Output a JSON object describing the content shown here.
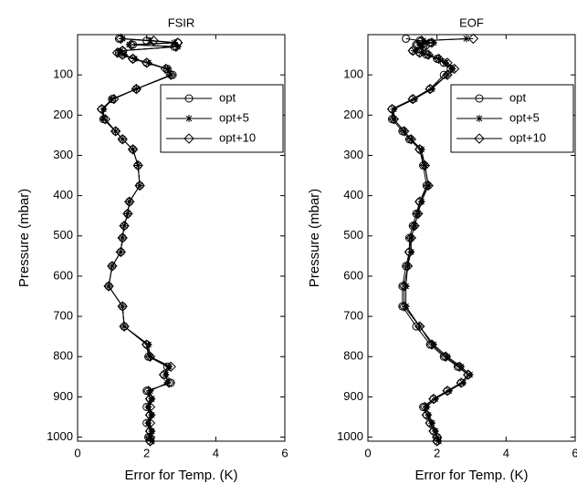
{
  "chart_data": [
    {
      "type": "line",
      "title": "FSIR",
      "xlabel": "Error for Temp. (K)",
      "ylabel": "Pressure (mbar)",
      "y": [
        10,
        15,
        20,
        25,
        30,
        40,
        45,
        50,
        60,
        70,
        85,
        100,
        135,
        160,
        185,
        210,
        240,
        260,
        285,
        325,
        375,
        415,
        445,
        475,
        505,
        540,
        575,
        625,
        675,
        725,
        770,
        800,
        825,
        845,
        865,
        885,
        905,
        925,
        945,
        965,
        985,
        1000,
        1010
      ],
      "series": [
        {
          "name": "opt",
          "color": "#000000",
          "marker": "circle",
          "values": [
            1.2,
            2.0,
            2.9,
            1.6,
            2.8,
            1.3,
            1.2,
            1.3,
            1.6,
            2.0,
            2.6,
            2.75,
            1.7,
            1.0,
            0.7,
            0.75,
            1.1,
            1.3,
            1.6,
            1.75,
            1.8,
            1.5,
            1.45,
            1.35,
            1.3,
            1.25,
            1.0,
            0.9,
            1.3,
            1.35,
            2.0,
            2.05,
            2.6,
            2.5,
            2.7,
            2.0,
            2.1,
            2.0,
            2.1,
            2.0,
            2.1,
            2.05,
            2.1
          ]
        },
        {
          "name": "opt+5",
          "color": "#000000",
          "marker": "star",
          "values": [
            1.3,
            2.1,
            2.8,
            1.5,
            2.9,
            1.25,
            1.2,
            1.35,
            1.65,
            2.05,
            2.6,
            2.7,
            1.7,
            1.0,
            0.75,
            0.75,
            1.1,
            1.3,
            1.6,
            1.75,
            1.8,
            1.5,
            1.45,
            1.35,
            1.3,
            1.25,
            1.0,
            0.9,
            1.3,
            1.35,
            2.05,
            2.1,
            2.65,
            2.55,
            2.6,
            2.1,
            2.15,
            2.05,
            2.15,
            2.05,
            2.15,
            2.1,
            2.15
          ]
        },
        {
          "name": "opt+10",
          "color": "#000000",
          "marker": "diamond",
          "values": [
            1.25,
            2.2,
            2.9,
            1.55,
            2.85,
            1.3,
            1.15,
            1.3,
            1.6,
            2.0,
            2.55,
            2.7,
            1.7,
            1.05,
            0.7,
            0.8,
            1.1,
            1.3,
            1.6,
            1.75,
            1.8,
            1.5,
            1.45,
            1.35,
            1.3,
            1.25,
            1.0,
            0.9,
            1.3,
            1.35,
            2.0,
            2.1,
            2.7,
            2.5,
            2.65,
            2.05,
            2.1,
            2.1,
            2.1,
            2.1,
            2.1,
            2.1,
            2.1
          ]
        }
      ],
      "xlim": [
        0,
        6
      ],
      "xticks": [
        0,
        2,
        4,
        6
      ],
      "ylim": [
        1010,
        0
      ],
      "yticks": [
        100,
        200,
        300,
        400,
        500,
        600,
        700,
        800,
        900,
        1000
      ],
      "legend": "upper right"
    },
    {
      "type": "line",
      "title": "EOF",
      "xlabel": "Error for Temp. (K)",
      "ylabel": "Pressure (mbar)",
      "y": [
        10,
        15,
        20,
        25,
        30,
        40,
        45,
        50,
        60,
        70,
        85,
        100,
        135,
        160,
        185,
        210,
        240,
        260,
        285,
        325,
        375,
        415,
        445,
        475,
        505,
        540,
        575,
        625,
        675,
        725,
        770,
        800,
        825,
        845,
        865,
        885,
        905,
        925,
        945,
        965,
        985,
        1000,
        1010
      ],
      "series": [
        {
          "name": "opt",
          "color": "#000000",
          "marker": "circle",
          "values": [
            1.1,
            1.5,
            1.8,
            1.4,
            1.6,
            1.3,
            1.5,
            1.7,
            2.0,
            2.2,
            2.4,
            2.2,
            1.8,
            1.3,
            0.7,
            0.7,
            1.0,
            1.2,
            1.5,
            1.6,
            1.7,
            1.5,
            1.4,
            1.3,
            1.2,
            1.2,
            1.1,
            1.0,
            1.0,
            1.4,
            1.8,
            2.2,
            2.6,
            2.9,
            2.7,
            2.3,
            1.9,
            1.6,
            1.7,
            1.8,
            1.9,
            2.0,
            2.0
          ]
        },
        {
          "name": "opt+5",
          "color": "#000000",
          "marker": "star",
          "values": [
            2.85,
            1.6,
            1.9,
            1.5,
            1.6,
            1.35,
            1.55,
            1.75,
            2.05,
            2.25,
            2.45,
            2.3,
            1.85,
            1.35,
            0.75,
            0.75,
            1.05,
            1.25,
            1.55,
            1.65,
            1.75,
            1.55,
            1.45,
            1.35,
            1.25,
            1.25,
            1.15,
            1.1,
            1.1,
            1.5,
            1.9,
            2.3,
            2.7,
            2.95,
            2.75,
            2.35,
            1.95,
            1.7,
            1.75,
            1.85,
            1.95,
            2.0,
            2.05
          ]
        },
        {
          "name": "opt+10",
          "color": "#000000",
          "marker": "diamond",
          "values": [
            3.05,
            1.55,
            1.85,
            1.45,
            1.65,
            1.3,
            1.5,
            1.75,
            2.05,
            2.3,
            2.5,
            2.3,
            1.8,
            1.3,
            0.7,
            0.75,
            1.05,
            1.25,
            1.5,
            1.65,
            1.75,
            1.5,
            1.45,
            1.35,
            1.25,
            1.2,
            1.15,
            1.05,
            1.05,
            1.5,
            1.85,
            2.25,
            2.65,
            2.9,
            2.7,
            2.3,
            1.9,
            1.65,
            1.7,
            1.8,
            1.9,
            2.0,
            2.0
          ]
        }
      ],
      "xlim": [
        0,
        6
      ],
      "xticks": [
        0,
        2,
        4,
        6
      ],
      "ylim": [
        1010,
        0
      ],
      "yticks": [
        100,
        200,
        300,
        400,
        500,
        600,
        700,
        800,
        900,
        1000
      ],
      "legend": "upper right"
    }
  ]
}
